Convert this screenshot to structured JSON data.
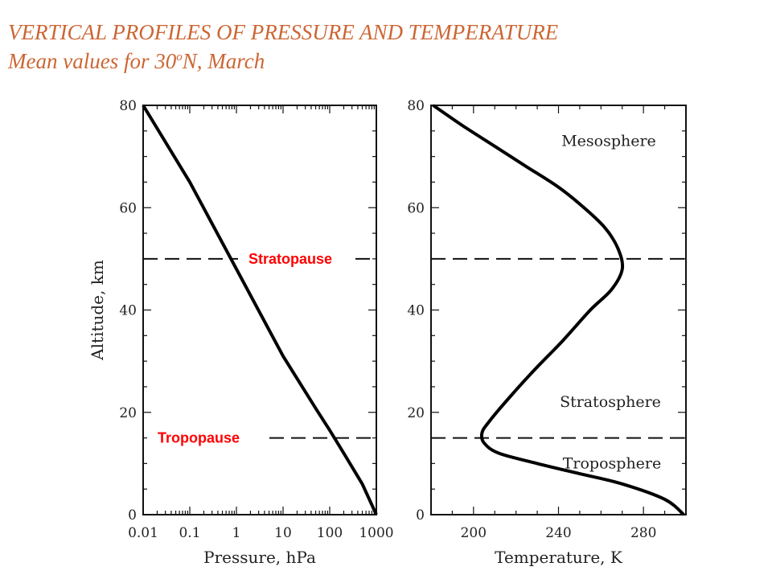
{
  "title": {
    "line1": "VERTICAL PROFILES OF PRESSURE AND TEMPERATURE",
    "line2_pre": "Mean values for 30",
    "line2_sup": "o",
    "line2_post": "N, March"
  },
  "chart_data": [
    {
      "type": "line",
      "xlabel": "Pressure, hPa",
      "ylabel": "Altitude, km",
      "xscale": "log",
      "xlim": [
        0.01,
        1000
      ],
      "ylim": [
        0,
        80
      ],
      "xticks": [
        "0.01",
        "0.1",
        "1",
        "10",
        "100",
        "1000"
      ],
      "yticks": [
        "0",
        "20",
        "40",
        "60",
        "80"
      ],
      "series": [
        {
          "x": [
            1000,
            500,
            200,
            100,
            50,
            10,
            1,
            0.1,
            0.01
          ],
          "y": [
            0,
            6,
            12,
            16.5,
            20.8,
            31,
            48,
            65,
            80
          ]
        }
      ],
      "annotations": [
        {
          "text": "Stratopause",
          "altitude": 50
        },
        {
          "text": "Tropopause",
          "altitude": 15
        }
      ]
    },
    {
      "type": "line",
      "xlabel": "Temperature, K",
      "xlim": [
        180,
        300
      ],
      "ylim": [
        0,
        80
      ],
      "xticks": [
        "200",
        "240",
        "280"
      ],
      "yticks": [
        "0",
        "20",
        "40",
        "60",
        "80"
      ],
      "series": [
        {
          "x": [
            299,
            290,
            270,
            250,
            230,
            212,
            205,
            204,
            207,
            215,
            228,
            242,
            255,
            265,
            270,
            268,
            262,
            252,
            240,
            225,
            210,
            195,
            181
          ],
          "y": [
            0,
            3,
            6,
            8,
            10,
            12,
            14,
            16,
            18,
            22,
            28,
            34,
            40,
            44,
            48,
            52,
            56,
            60,
            64,
            68,
            72,
            76,
            80
          ]
        }
      ],
      "annotations": [
        {
          "text": "Mesosphere",
          "altitude": 73
        },
        {
          "text": "Stratosphere",
          "altitude": 22
        },
        {
          "text": "Troposphere",
          "altitude": 10
        }
      ]
    }
  ]
}
